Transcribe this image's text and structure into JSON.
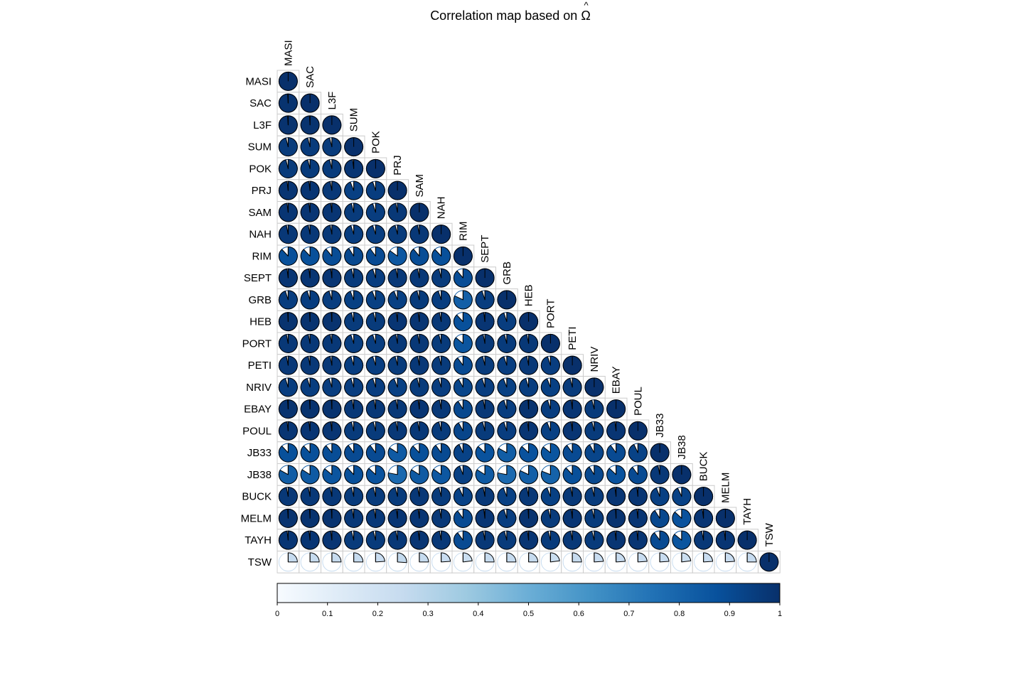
{
  "colors": {
    "cell_border": "#cccccc",
    "pie_stroke": "#000000",
    "scale": [
      "#f7fbff",
      "#deebf7",
      "#c6dbef",
      "#9ecae1",
      "#6baed6",
      "#4292c6",
      "#2171b5",
      "#08519c",
      "#08306b"
    ]
  },
  "chart_data": {
    "type": "heatmap",
    "style": "corrplot-pie-lower-triangle",
    "title": "Correlation map based on",
    "title_symbol": "Ω",
    "variables": [
      "MASI",
      "SAC",
      "L3F",
      "SUM",
      "POK",
      "PRJ",
      "SAM",
      "NAH",
      "RIM",
      "SEPT",
      "GRB",
      "HEB",
      "PORT",
      "PETI",
      "NRIV",
      "EBAY",
      "POUL",
      "JB33",
      "JB38",
      "BUCK",
      "MELM",
      "TAYH",
      "TSW"
    ],
    "matrix": [
      [
        1.0
      ],
      [
        0.99,
        1.0
      ],
      [
        0.99,
        0.99,
        1.0
      ],
      [
        0.96,
        0.96,
        0.96,
        1.0
      ],
      [
        0.96,
        0.96,
        0.96,
        0.98,
        1.0
      ],
      [
        0.98,
        0.98,
        0.97,
        0.94,
        0.95,
        1.0
      ],
      [
        0.98,
        0.98,
        0.98,
        0.96,
        0.95,
        0.97,
        1.0
      ],
      [
        0.97,
        0.97,
        0.97,
        0.95,
        0.95,
        0.96,
        0.97,
        1.0
      ],
      [
        0.88,
        0.88,
        0.89,
        0.91,
        0.9,
        0.85,
        0.89,
        0.88,
        1.0
      ],
      [
        0.98,
        0.98,
        0.98,
        0.96,
        0.95,
        0.97,
        0.97,
        0.96,
        0.89,
        1.0
      ],
      [
        0.95,
        0.95,
        0.95,
        0.94,
        0.94,
        0.94,
        0.96,
        0.95,
        0.82,
        0.95,
        1.0
      ],
      [
        0.99,
        0.99,
        0.99,
        0.96,
        0.96,
        0.98,
        0.98,
        0.97,
        0.88,
        0.98,
        0.95,
        1.0
      ],
      [
        0.97,
        0.97,
        0.97,
        0.95,
        0.95,
        0.97,
        0.97,
        0.96,
        0.86,
        0.97,
        0.96,
        0.97,
        1.0
      ],
      [
        0.97,
        0.97,
        0.97,
        0.95,
        0.95,
        0.96,
        0.97,
        0.96,
        0.9,
        0.96,
        0.95,
        0.97,
        0.95,
        1.0
      ],
      [
        0.95,
        0.95,
        0.95,
        0.95,
        0.95,
        0.94,
        0.96,
        0.95,
        0.92,
        0.95,
        0.94,
        0.95,
        0.94,
        0.96,
        1.0
      ],
      [
        0.99,
        0.99,
        0.99,
        0.97,
        0.97,
        0.97,
        0.98,
        0.97,
        0.91,
        0.97,
        0.95,
        0.99,
        0.95,
        0.98,
        0.96,
        1.0
      ],
      [
        0.98,
        0.98,
        0.98,
        0.96,
        0.96,
        0.97,
        0.97,
        0.96,
        0.92,
        0.96,
        0.95,
        0.98,
        0.94,
        0.98,
        0.96,
        0.98,
        1.0
      ],
      [
        0.88,
        0.88,
        0.89,
        0.9,
        0.9,
        0.84,
        0.88,
        0.9,
        0.93,
        0.87,
        0.83,
        0.87,
        0.86,
        0.9,
        0.92,
        0.9,
        0.93,
        1.0
      ],
      [
        0.83,
        0.84,
        0.86,
        0.88,
        0.87,
        0.78,
        0.84,
        0.85,
        0.94,
        0.84,
        0.78,
        0.82,
        0.81,
        0.88,
        0.91,
        0.87,
        0.9,
        0.97,
        1.0
      ],
      [
        0.97,
        0.97,
        0.97,
        0.96,
        0.96,
        0.96,
        0.97,
        0.96,
        0.93,
        0.97,
        0.94,
        0.97,
        0.94,
        0.97,
        0.96,
        0.98,
        0.98,
        0.94,
        0.93,
        1.0
      ],
      [
        0.99,
        0.99,
        0.99,
        0.97,
        0.97,
        0.98,
        0.98,
        0.97,
        0.9,
        0.98,
        0.95,
        0.99,
        0.96,
        0.98,
        0.96,
        0.99,
        0.98,
        0.91,
        0.87,
        0.98,
        1.0
      ],
      [
        0.98,
        0.98,
        0.98,
        0.96,
        0.96,
        0.97,
        0.98,
        0.97,
        0.9,
        0.97,
        0.96,
        0.98,
        0.96,
        0.97,
        0.96,
        0.98,
        0.98,
        0.9,
        0.86,
        0.97,
        0.98,
        1.0
      ],
      [
        0.25,
        0.25,
        0.25,
        0.25,
        0.24,
        0.26,
        0.25,
        0.24,
        0.23,
        0.25,
        0.25,
        0.25,
        0.23,
        0.25,
        0.24,
        0.24,
        0.24,
        0.24,
        0.23,
        0.24,
        0.24,
        0.25,
        1.0
      ]
    ],
    "colorbar": {
      "range": [
        0,
        1
      ],
      "ticks": [
        "0",
        "0.1",
        "0.2",
        "0.3",
        "0.4",
        "0.5",
        "0.6",
        "0.7",
        "0.8",
        "0.9",
        "1"
      ]
    }
  }
}
